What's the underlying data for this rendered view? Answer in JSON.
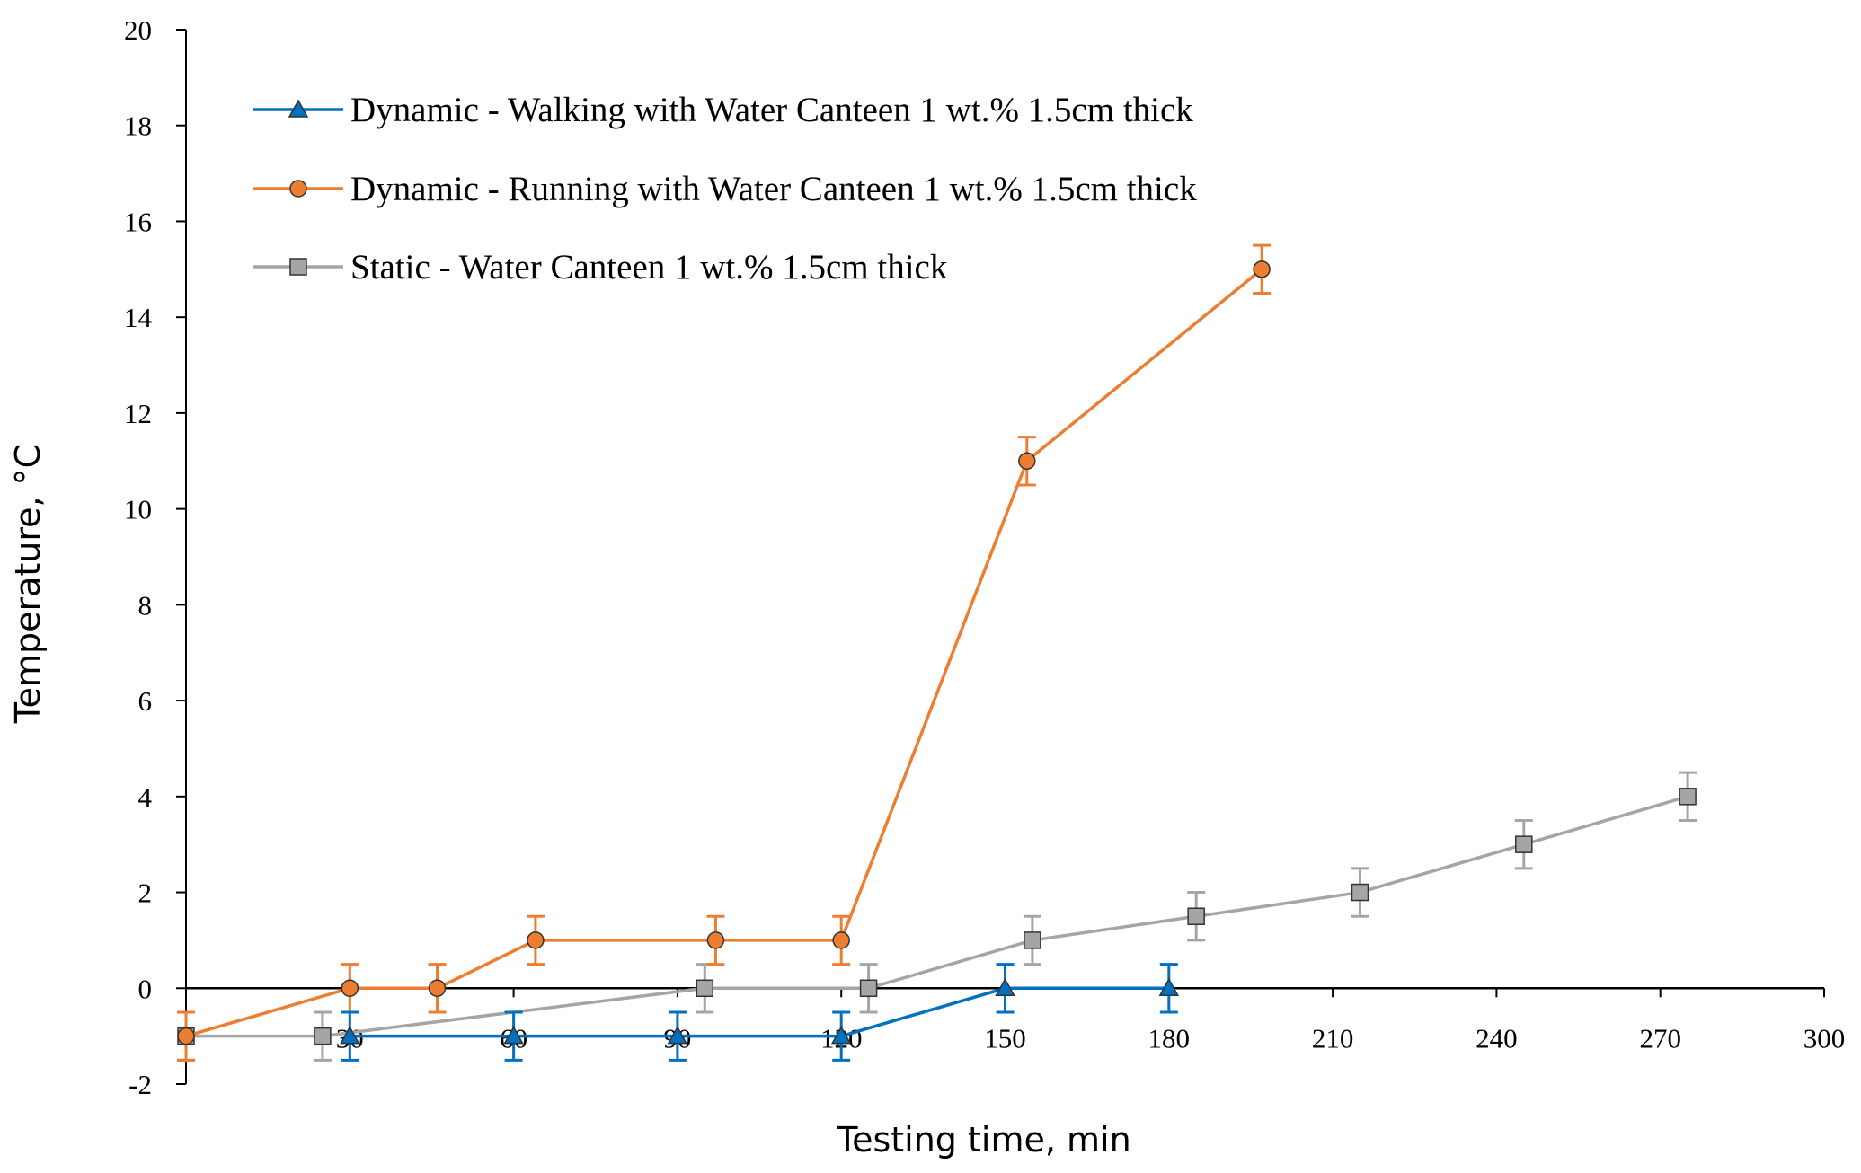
{
  "chart_data": {
    "type": "line",
    "title": "",
    "xlabel": "Testing time, min",
    "ylabel": "Temperature, °C",
    "xlim": [
      0,
      300
    ],
    "ylim": [
      -2,
      20
    ],
    "xticks": [
      30,
      60,
      90,
      120,
      150,
      180,
      210,
      240,
      270,
      300
    ],
    "yticks": [
      -2,
      0,
      2,
      4,
      6,
      8,
      10,
      12,
      14,
      16,
      18,
      20
    ],
    "grid": false,
    "legend_position": "top-left",
    "series": [
      {
        "name": "Dynamic - Walking with Water Canteen 1 wt.% 1.5cm thick",
        "color": "#0070C0",
        "marker": "triangle",
        "points": [
          {
            "x": 30,
            "y": -1,
            "err": 0.5
          },
          {
            "x": 60,
            "y": -1,
            "err": 0.5
          },
          {
            "x": 90,
            "y": -1,
            "err": 0.5
          },
          {
            "x": 120,
            "y": -1,
            "err": 0.5
          },
          {
            "x": 150,
            "y": 0,
            "err": 0.5
          },
          {
            "x": 180,
            "y": 0,
            "err": 0.5
          }
        ]
      },
      {
        "name": "Dynamic - Running with Water Canteen 1 wt.% 1.5cm thick",
        "color": "#ED7D31",
        "marker": "circle",
        "points": [
          {
            "x": 0,
            "y": -1,
            "err": 0.5
          },
          {
            "x": 30,
            "y": 0,
            "err": 0.5
          },
          {
            "x": 46,
            "y": 0,
            "err": 0.5
          },
          {
            "x": 64,
            "y": 1,
            "err": 0.5
          },
          {
            "x": 97,
            "y": 1,
            "err": 0.5
          },
          {
            "x": 120,
            "y": 1,
            "err": 0.5
          },
          {
            "x": 154,
            "y": 11,
            "err": 0.5
          },
          {
            "x": 197,
            "y": 15,
            "err": 0.5
          }
        ]
      },
      {
        "name": "Static - Water Canteen 1 wt.% 1.5cm thick",
        "color": "#A5A5A5",
        "marker": "square",
        "points": [
          {
            "x": 0,
            "y": -1,
            "err": 0.5
          },
          {
            "x": 25,
            "y": -1,
            "err": 0.5
          },
          {
            "x": 95,
            "y": 0,
            "err": 0.5
          },
          {
            "x": 125,
            "y": 0,
            "err": 0.5
          },
          {
            "x": 155,
            "y": 1,
            "err": 0.5
          },
          {
            "x": 185,
            "y": 1.5,
            "err": 0.5
          },
          {
            "x": 215,
            "y": 2,
            "err": 0.5
          },
          {
            "x": 245,
            "y": 3,
            "err": 0.5
          },
          {
            "x": 275,
            "y": 4,
            "err": 0.5
          }
        ]
      }
    ]
  }
}
